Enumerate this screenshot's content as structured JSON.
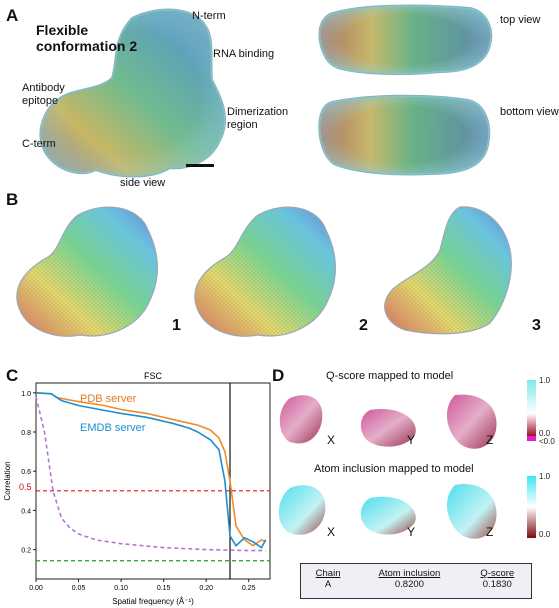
{
  "panels": {
    "a": {
      "letter": "A",
      "title_line1": "Flexible",
      "title_line2": "conformation 2",
      "labels": {
        "nterm": "N-term",
        "rna": "RNA binding",
        "antibody1": "Antibody",
        "antibody2": "epitope",
        "dimer1": "Dimerization",
        "dimer2": "region",
        "cterm": "C-term",
        "side": "side view",
        "top": "top view",
        "bottom": "bottom view"
      }
    },
    "b": {
      "letter": "B",
      "models": [
        "1",
        "2",
        "3"
      ]
    },
    "c": {
      "letter": "C"
    },
    "d": {
      "letter": "D",
      "qscore_title": "Q-score mapped to model",
      "atom_title": "Atom inclusion mapped to model",
      "axes": [
        "X",
        "Y",
        "Z"
      ],
      "qscore_colorbar": {
        "top": "1.0",
        "bottom1": "0.0",
        "bottom2": "<0.0",
        "top_color": "#7fe8ea",
        "bottom_color": "#b0106a"
      },
      "atom_colorbar": {
        "top": "1.0",
        "bottom": "0.0",
        "top_color": "#3ee8f0",
        "bottom_color": "#7a0d10"
      },
      "table": {
        "headers": [
          "Chain",
          "Atom inclusion",
          "Q-score"
        ],
        "row": [
          "A",
          "0.8200",
          "0.1830"
        ]
      }
    }
  },
  "chart_data": {
    "type": "line",
    "title": "FSC",
    "xlabel": "Spatial frequency (Å⁻¹)",
    "ylabel": "Correlation",
    "xlim": [
      0,
      0.275
    ],
    "ylim": [
      0.05,
      1.05
    ],
    "xticks": [
      "0.00",
      "0.05",
      "0.10",
      "0.15",
      "0.20",
      "0.25"
    ],
    "yticks": [
      "0.2",
      "0.4",
      "0.6",
      "0.8",
      "1.0"
    ],
    "threshold_label": "0.5",
    "series": [
      {
        "name": "PDB server",
        "color": "#f08a2a",
        "x": [
          0,
          0.018,
          0.025,
          0.05,
          0.08,
          0.1,
          0.13,
          0.16,
          0.19,
          0.205,
          0.215,
          0.222,
          0.228,
          0.235,
          0.245,
          0.255,
          0.265,
          0.27
        ],
        "y": [
          1.0,
          0.995,
          0.975,
          0.955,
          0.935,
          0.915,
          0.895,
          0.865,
          0.835,
          0.81,
          0.77,
          0.7,
          0.55,
          0.32,
          0.25,
          0.22,
          0.25,
          0.24
        ]
      },
      {
        "name": "EMDB server",
        "color": "#1c8fcc",
        "x": [
          0,
          0.018,
          0.03,
          0.05,
          0.08,
          0.1,
          0.13,
          0.16,
          0.18,
          0.19,
          0.205,
          0.215,
          0.222,
          0.228,
          0.235,
          0.245,
          0.255,
          0.265,
          0.27
        ],
        "y": [
          1.0,
          0.995,
          0.96,
          0.935,
          0.91,
          0.895,
          0.875,
          0.845,
          0.82,
          0.8,
          0.76,
          0.71,
          0.55,
          0.27,
          0.22,
          0.26,
          0.24,
          0.21,
          0.25
        ]
      },
      {
        "name": "",
        "color": "#b673d6",
        "dashed": true,
        "x": [
          0,
          0.01,
          0.02,
          0.03,
          0.04,
          0.05,
          0.07,
          0.1,
          0.15,
          0.2,
          0.25,
          0.27
        ],
        "y": [
          0.98,
          0.8,
          0.5,
          0.36,
          0.31,
          0.28,
          0.25,
          0.23,
          0.21,
          0.2,
          0.195,
          0.195
        ]
      }
    ],
    "hlines": [
      {
        "y": 0.5,
        "color": "#e01818"
      },
      {
        "y": 0.143,
        "color": "#22a02a"
      }
    ],
    "vline": {
      "x": 0.228,
      "color": "#111111"
    }
  }
}
